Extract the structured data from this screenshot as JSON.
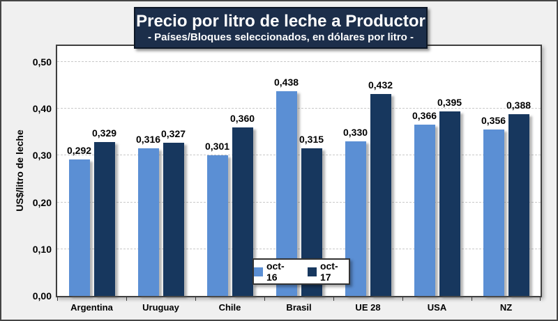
{
  "chart_data": {
    "type": "bar",
    "title": "Precio por litro de leche a Productor",
    "subtitle": "- Países/Bloques seleccionados, en dólares por litro -",
    "ylabel": "US$/litro de leche",
    "xlabel": "",
    "categories": [
      "Argentina",
      "Uruguay",
      "Chile",
      "Brasil",
      "UE 28",
      "USA",
      "NZ"
    ],
    "series": [
      {
        "name": "oct-16",
        "color": "#5B8FD4",
        "values": [
          0.292,
          0.316,
          0.301,
          0.438,
          0.33,
          0.366,
          0.356
        ],
        "labels": [
          "0,292",
          "0,316",
          "0,301",
          "0,438",
          "0,330",
          "0,366",
          "0,356"
        ]
      },
      {
        "name": "oct-17",
        "color": "#17375E",
        "values": [
          0.329,
          0.327,
          0.36,
          0.315,
          0.432,
          0.395,
          0.388
        ],
        "labels": [
          "0,329",
          "0,327",
          "0,360",
          "0,315",
          "0,432",
          "0,395",
          "0,388"
        ]
      }
    ],
    "yticks": [
      {
        "value": 0.0,
        "label": "0,00"
      },
      {
        "value": 0.1,
        "label": "0,10"
      },
      {
        "value": 0.2,
        "label": "0,20"
      },
      {
        "value": 0.3,
        "label": "0,30"
      },
      {
        "value": 0.4,
        "label": "0,40"
      },
      {
        "value": 0.5,
        "label": "0,50"
      }
    ],
    "ylim": [
      0,
      0.54
    ],
    "grid": true,
    "grid_style": "dashed",
    "legend_position": "inside-bottom-center"
  },
  "colors": {
    "chart_background": "#F0F0F0",
    "plot_background": "#FFFFFF",
    "title_background": "#1C2E4A",
    "title_text": "#FFFFFF",
    "series_oct16": "#5B8FD4",
    "series_oct17": "#17375E",
    "gridline": "#C8C8C8",
    "border": "#3F3F3F",
    "label_text": "#000000"
  }
}
